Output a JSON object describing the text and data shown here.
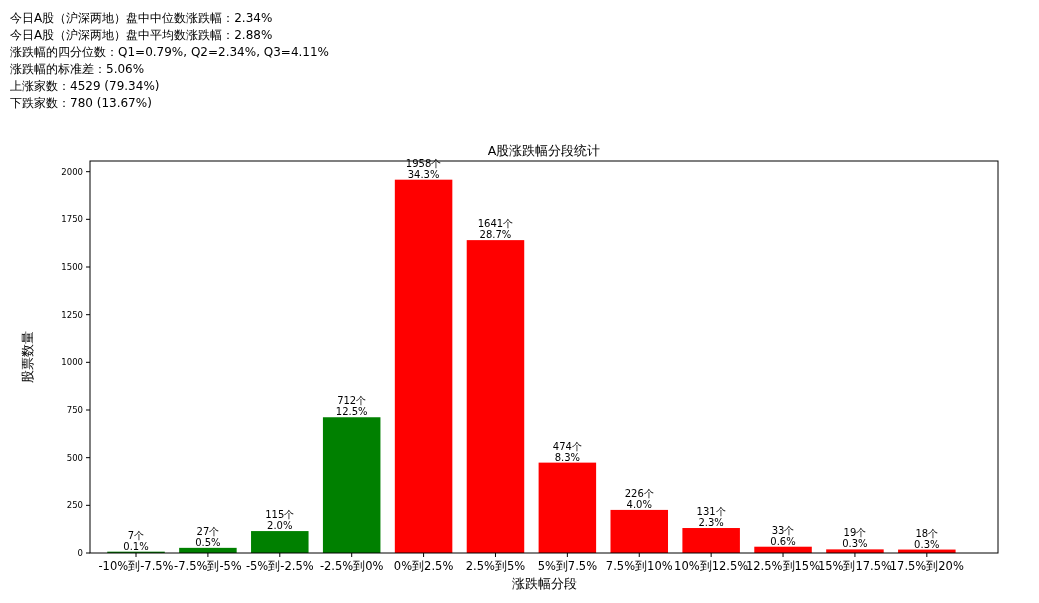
{
  "chart_data": {
    "type": "bar",
    "title": "A股涨跌幅分段统计",
    "xlabel": "涨跌幅分段",
    "ylabel": "股票数量",
    "annotations": [
      "今日A股（沪深两地）盘中中位数涨跌幅：2.34%",
      "今日A股（沪深两地）盘中平均数涨跌幅：2.88%",
      "涨跌幅的四分位数：Q1=0.79%, Q2=2.34%, Q3=4.11%",
      "涨跌幅的标准差：5.06%",
      "上涨家数：4529 (79.34%)",
      "下跌家数：780 (13.67%)"
    ],
    "categories": [
      "-10%到-7.5%",
      "-7.5%到-5%",
      "-5%到-2.5%",
      "-2.5%到0%",
      "0%到2.5%",
      "2.5%到5%",
      "5%到7.5%",
      "7.5%到10%",
      "10%到12.5%",
      "12.5%到15%",
      "15%到17.5%",
      "17.5%到20%"
    ],
    "values": [
      7,
      27,
      115,
      712,
      1958,
      1641,
      474,
      226,
      131,
      33,
      19,
      18
    ],
    "colors": [
      "#008000",
      "#008000",
      "#008000",
      "#008000",
      "#ff0000",
      "#ff0000",
      "#ff0000",
      "#ff0000",
      "#ff0000",
      "#ff0000",
      "#ff0000",
      "#ff0000"
    ],
    "value_labels": [
      "7个\n0.1%",
      "27个\n0.5%",
      "115个\n2.0%",
      "712个\n12.5%",
      "1958个\n34.3%",
      "1641个\n28.7%",
      "474个\n8.3%",
      "226个\n4.0%",
      "131个\n2.3%",
      "33个\n0.6%",
      "19个\n0.3%",
      "18个\n0.3%"
    ],
    "ylim": [
      0,
      2056
    ],
    "yticks": [
      0,
      250,
      500,
      750,
      1000,
      1250,
      1500,
      1750,
      2000
    ],
    "grid": false
  }
}
